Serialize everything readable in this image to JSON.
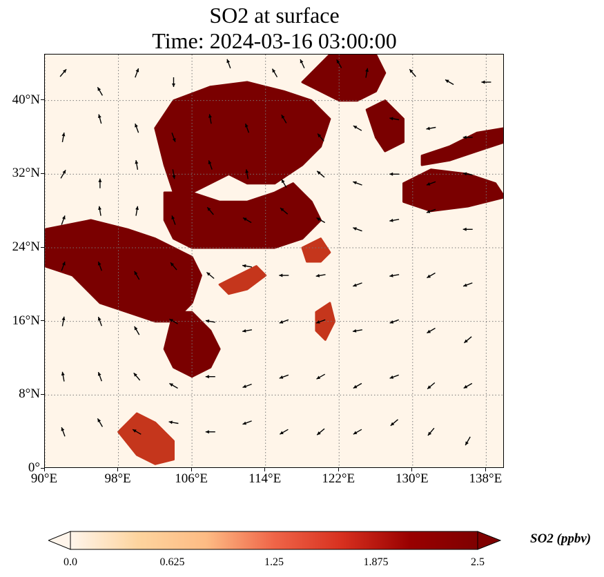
{
  "title": {
    "line1": "SO2 at surface",
    "line2": "Time: 2024-03-16 03:00:00"
  },
  "map": {
    "lon_range": [
      90,
      140
    ],
    "lat_range": [
      0,
      45
    ],
    "lon_ticks": [
      {
        "value": 90,
        "label": "90°E"
      },
      {
        "value": 98,
        "label": "98°E"
      },
      {
        "value": 106,
        "label": "106°E"
      },
      {
        "value": 114,
        "label": "114°E"
      },
      {
        "value": 122,
        "label": "122°E"
      },
      {
        "value": 130,
        "label": "130°E"
      },
      {
        "value": 138,
        "label": "138°E"
      }
    ],
    "lat_ticks": [
      {
        "value": 0,
        "label": "0°"
      },
      {
        "value": 8,
        "label": "8°N"
      },
      {
        "value": 16,
        "label": "16°N"
      },
      {
        "value": 24,
        "label": "24°N"
      },
      {
        "value": 32,
        "label": "32°N"
      },
      {
        "value": 40,
        "label": "40°N"
      }
    ],
    "gridlines": "dotted",
    "colors": {
      "ocean_background": "#fff5e9",
      "high": "#7a0000",
      "mid": "#c5361c",
      "low": "#fdbb84"
    },
    "so2_regions": [
      {
        "level": 2.5,
        "points": [
          [
            104,
            40
          ],
          [
            108,
            41.5
          ],
          [
            112,
            42
          ],
          [
            116,
            41
          ],
          [
            119,
            40
          ],
          [
            121,
            38
          ],
          [
            120,
            35
          ],
          [
            118,
            33
          ],
          [
            115,
            31
          ],
          [
            112,
            31
          ],
          [
            110,
            32
          ],
          [
            108,
            31
          ],
          [
            106,
            30
          ],
          [
            104,
            30
          ],
          [
            103,
            33
          ],
          [
            102,
            37
          ]
        ]
      },
      {
        "level": 2.5,
        "points": [
          [
            103,
            30
          ],
          [
            106,
            30
          ],
          [
            109,
            29
          ],
          [
            112,
            29
          ],
          [
            115,
            30
          ],
          [
            117,
            31
          ],
          [
            119,
            29
          ],
          [
            120,
            27
          ],
          [
            118,
            25
          ],
          [
            115,
            24
          ],
          [
            112,
            24
          ],
          [
            109,
            24
          ],
          [
            106,
            24
          ],
          [
            104,
            25
          ],
          [
            103,
            27
          ]
        ]
      },
      {
        "level": 2.5,
        "points": [
          [
            90,
            26
          ],
          [
            95,
            27
          ],
          [
            99,
            26
          ],
          [
            102,
            25
          ],
          [
            104,
            24
          ],
          [
            106,
            23
          ],
          [
            107,
            21
          ],
          [
            106,
            18
          ],
          [
            104,
            16
          ],
          [
            102,
            16
          ],
          [
            99,
            17
          ],
          [
            96,
            18
          ],
          [
            93,
            21
          ],
          [
            90,
            22
          ]
        ]
      },
      {
        "level": 2.5,
        "points": [
          [
            104,
            17
          ],
          [
            106,
            17
          ],
          [
            108,
            15
          ],
          [
            109,
            13
          ],
          [
            108,
            11
          ],
          [
            106,
            10
          ],
          [
            104,
            11
          ],
          [
            103,
            13
          ]
        ]
      },
      {
        "level": 2.5,
        "points": [
          [
            118,
            42
          ],
          [
            121,
            45
          ],
          [
            126,
            45
          ],
          [
            127,
            43
          ],
          [
            126,
            41
          ],
          [
            124,
            40
          ],
          [
            122,
            40
          ],
          [
            120,
            41
          ]
        ]
      },
      {
        "level": 2.5,
        "points": [
          [
            125,
            39
          ],
          [
            127,
            40
          ],
          [
            129,
            38
          ],
          [
            129,
            35.5
          ],
          [
            127,
            34.5
          ],
          [
            126,
            36
          ]
        ]
      },
      {
        "level": 2.5,
        "points": [
          [
            129,
            31
          ],
          [
            132,
            32.5
          ],
          [
            136,
            32
          ],
          [
            139,
            31
          ],
          [
            140,
            29.5
          ],
          [
            136,
            28.5
          ],
          [
            132,
            28
          ],
          [
            129,
            29
          ]
        ]
      },
      {
        "level": 2.5,
        "points": [
          [
            131,
            34
          ],
          [
            134,
            35
          ],
          [
            137,
            36.5
          ],
          [
            140,
            37
          ],
          [
            140,
            35.5
          ],
          [
            137,
            34.5
          ],
          [
            134,
            33.5
          ],
          [
            131,
            33
          ]
        ]
      },
      {
        "level": 1.8,
        "points": [
          [
            109,
            20
          ],
          [
            111,
            21
          ],
          [
            113,
            22
          ],
          [
            114,
            21
          ],
          [
            112,
            19.5
          ],
          [
            110,
            19
          ]
        ]
      },
      {
        "level": 1.8,
        "points": [
          [
            118,
            24
          ],
          [
            120,
            25
          ],
          [
            121,
            23.5
          ],
          [
            120,
            22.5
          ],
          [
            118.5,
            22.5
          ]
        ]
      },
      {
        "level": 1.8,
        "points": [
          [
            98,
            4
          ],
          [
            100,
            6
          ],
          [
            102,
            5
          ],
          [
            104,
            3
          ],
          [
            104,
            1
          ],
          [
            102,
            0.5
          ],
          [
            100,
            1.5
          ]
        ]
      },
      {
        "level": 1.8,
        "points": [
          [
            119.5,
            17
          ],
          [
            121,
            18
          ],
          [
            121.5,
            16
          ],
          [
            120.5,
            14
          ],
          [
            119.5,
            15
          ]
        ]
      }
    ],
    "wind_vectors": [
      [
        92,
        43,
        40
      ],
      [
        96,
        41,
        -30
      ],
      [
        100,
        43,
        20
      ],
      [
        104,
        42,
        180
      ],
      [
        110,
        44,
        -20
      ],
      [
        115,
        43,
        -30
      ],
      [
        118,
        44,
        -25
      ],
      [
        122,
        44,
        -30
      ],
      [
        125,
        43,
        10
      ],
      [
        130,
        43,
        -40
      ],
      [
        134,
        42,
        -60
      ],
      [
        138,
        42,
        -90
      ],
      [
        92,
        36,
        10
      ],
      [
        96,
        38,
        -15
      ],
      [
        100,
        37,
        -20
      ],
      [
        104,
        36,
        160
      ],
      [
        108,
        38,
        -10
      ],
      [
        112,
        37,
        -20
      ],
      [
        116,
        38,
        -30
      ],
      [
        120,
        36,
        -40
      ],
      [
        124,
        37,
        -60
      ],
      [
        128,
        38,
        -80
      ],
      [
        132,
        37,
        -100
      ],
      [
        136,
        36,
        -90
      ],
      [
        92,
        32,
        30
      ],
      [
        96,
        31,
        0
      ],
      [
        100,
        33,
        -10
      ],
      [
        104,
        32,
        170
      ],
      [
        108,
        33,
        -20
      ],
      [
        112,
        32,
        -10
      ],
      [
        116,
        31,
        -30
      ],
      [
        120,
        32,
        -50
      ],
      [
        124,
        31,
        -70
      ],
      [
        128,
        32,
        -90
      ],
      [
        132,
        31,
        -110
      ],
      [
        136,
        32,
        -80
      ],
      [
        92,
        27,
        20
      ],
      [
        96,
        28,
        -10
      ],
      [
        100,
        28,
        10
      ],
      [
        104,
        27,
        -20
      ],
      [
        108,
        28,
        -40
      ],
      [
        112,
        27,
        -60
      ],
      [
        116,
        28,
        -50
      ],
      [
        120,
        27,
        -60
      ],
      [
        124,
        26,
        -70
      ],
      [
        128,
        27,
        -100
      ],
      [
        132,
        28,
        -110
      ],
      [
        136,
        26,
        -90
      ],
      [
        92,
        22,
        20
      ],
      [
        96,
        22,
        -20
      ],
      [
        100,
        21,
        -30
      ],
      [
        104,
        22,
        -40
      ],
      [
        108,
        21,
        -50
      ],
      [
        112,
        22,
        -80
      ],
      [
        116,
        21,
        -90
      ],
      [
        120,
        21,
        -100
      ],
      [
        124,
        20,
        -110
      ],
      [
        128,
        21,
        -100
      ],
      [
        132,
        21,
        -120
      ],
      [
        136,
        20,
        -110
      ],
      [
        92,
        16,
        10
      ],
      [
        96,
        16,
        -20
      ],
      [
        100,
        15,
        -30
      ],
      [
        104,
        16,
        -60
      ],
      [
        108,
        16,
        -80
      ],
      [
        112,
        15,
        -100
      ],
      [
        116,
        16,
        -110
      ],
      [
        120,
        16,
        -110
      ],
      [
        124,
        15,
        -100
      ],
      [
        128,
        16,
        -110
      ],
      [
        132,
        15,
        -120
      ],
      [
        136,
        14,
        -130
      ],
      [
        92,
        10,
        -10
      ],
      [
        96,
        10,
        -20
      ],
      [
        100,
        10,
        -40
      ],
      [
        104,
        9,
        -60
      ],
      [
        108,
        10,
        -90
      ],
      [
        112,
        9,
        -110
      ],
      [
        116,
        10,
        -110
      ],
      [
        120,
        10,
        -120
      ],
      [
        124,
        9,
        -120
      ],
      [
        128,
        10,
        -110
      ],
      [
        132,
        9,
        -130
      ],
      [
        136,
        9,
        -120
      ],
      [
        92,
        4,
        -20
      ],
      [
        96,
        5,
        -30
      ],
      [
        100,
        4,
        -60
      ],
      [
        104,
        5,
        -80
      ],
      [
        108,
        4,
        -90
      ],
      [
        112,
        5,
        -110
      ],
      [
        116,
        4,
        -120
      ],
      [
        120,
        4,
        -130
      ],
      [
        124,
        4,
        -120
      ],
      [
        128,
        5,
        -130
      ],
      [
        132,
        4,
        -140
      ],
      [
        136,
        3,
        -150
      ]
    ]
  },
  "colorbar": {
    "min": 0.0,
    "max": 2.5,
    "ticks": [
      "0.0",
      "0.625",
      "1.25",
      "1.875",
      "2.5"
    ],
    "stops": [
      "#fff5eb",
      "#fdd49e",
      "#fdbb84",
      "#ef6548",
      "#d7301f",
      "#990000",
      "#7f0000"
    ],
    "label": "SO2 (ppbv)"
  }
}
